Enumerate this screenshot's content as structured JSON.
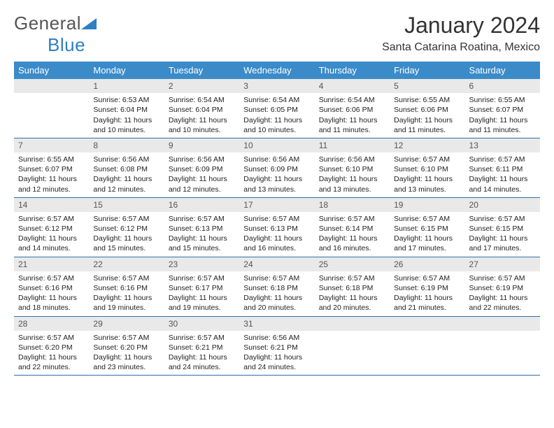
{
  "brand": {
    "part1": "General",
    "part2": "Blue"
  },
  "title": "January 2024",
  "location": "Santa Catarina Roatina, Mexico",
  "colors": {
    "header_bg": "#3b8bc9",
    "header_text": "#ffffff",
    "daynum_bg": "#e9e9e9",
    "row_border": "#2f6fa5",
    "brand_blue": "#2f7fc2"
  },
  "weekdays": [
    "Sunday",
    "Monday",
    "Tuesday",
    "Wednesday",
    "Thursday",
    "Friday",
    "Saturday"
  ],
  "start_offset": 1,
  "days": [
    {
      "n": 1,
      "sunrise": "6:53 AM",
      "sunset": "6:04 PM",
      "daylight": "11 hours and 10 minutes."
    },
    {
      "n": 2,
      "sunrise": "6:54 AM",
      "sunset": "6:04 PM",
      "daylight": "11 hours and 10 minutes."
    },
    {
      "n": 3,
      "sunrise": "6:54 AM",
      "sunset": "6:05 PM",
      "daylight": "11 hours and 10 minutes."
    },
    {
      "n": 4,
      "sunrise": "6:54 AM",
      "sunset": "6:06 PM",
      "daylight": "11 hours and 11 minutes."
    },
    {
      "n": 5,
      "sunrise": "6:55 AM",
      "sunset": "6:06 PM",
      "daylight": "11 hours and 11 minutes."
    },
    {
      "n": 6,
      "sunrise": "6:55 AM",
      "sunset": "6:07 PM",
      "daylight": "11 hours and 11 minutes."
    },
    {
      "n": 7,
      "sunrise": "6:55 AM",
      "sunset": "6:07 PM",
      "daylight": "11 hours and 12 minutes."
    },
    {
      "n": 8,
      "sunrise": "6:56 AM",
      "sunset": "6:08 PM",
      "daylight": "11 hours and 12 minutes."
    },
    {
      "n": 9,
      "sunrise": "6:56 AM",
      "sunset": "6:09 PM",
      "daylight": "11 hours and 12 minutes."
    },
    {
      "n": 10,
      "sunrise": "6:56 AM",
      "sunset": "6:09 PM",
      "daylight": "11 hours and 13 minutes."
    },
    {
      "n": 11,
      "sunrise": "6:56 AM",
      "sunset": "6:10 PM",
      "daylight": "11 hours and 13 minutes."
    },
    {
      "n": 12,
      "sunrise": "6:57 AM",
      "sunset": "6:10 PM",
      "daylight": "11 hours and 13 minutes."
    },
    {
      "n": 13,
      "sunrise": "6:57 AM",
      "sunset": "6:11 PM",
      "daylight": "11 hours and 14 minutes."
    },
    {
      "n": 14,
      "sunrise": "6:57 AM",
      "sunset": "6:12 PM",
      "daylight": "11 hours and 14 minutes."
    },
    {
      "n": 15,
      "sunrise": "6:57 AM",
      "sunset": "6:12 PM",
      "daylight": "11 hours and 15 minutes."
    },
    {
      "n": 16,
      "sunrise": "6:57 AM",
      "sunset": "6:13 PM",
      "daylight": "11 hours and 15 minutes."
    },
    {
      "n": 17,
      "sunrise": "6:57 AM",
      "sunset": "6:13 PM",
      "daylight": "11 hours and 16 minutes."
    },
    {
      "n": 18,
      "sunrise": "6:57 AM",
      "sunset": "6:14 PM",
      "daylight": "11 hours and 16 minutes."
    },
    {
      "n": 19,
      "sunrise": "6:57 AM",
      "sunset": "6:15 PM",
      "daylight": "11 hours and 17 minutes."
    },
    {
      "n": 20,
      "sunrise": "6:57 AM",
      "sunset": "6:15 PM",
      "daylight": "11 hours and 17 minutes."
    },
    {
      "n": 21,
      "sunrise": "6:57 AM",
      "sunset": "6:16 PM",
      "daylight": "11 hours and 18 minutes."
    },
    {
      "n": 22,
      "sunrise": "6:57 AM",
      "sunset": "6:16 PM",
      "daylight": "11 hours and 19 minutes."
    },
    {
      "n": 23,
      "sunrise": "6:57 AM",
      "sunset": "6:17 PM",
      "daylight": "11 hours and 19 minutes."
    },
    {
      "n": 24,
      "sunrise": "6:57 AM",
      "sunset": "6:18 PM",
      "daylight": "11 hours and 20 minutes."
    },
    {
      "n": 25,
      "sunrise": "6:57 AM",
      "sunset": "6:18 PM",
      "daylight": "11 hours and 20 minutes."
    },
    {
      "n": 26,
      "sunrise": "6:57 AM",
      "sunset": "6:19 PM",
      "daylight": "11 hours and 21 minutes."
    },
    {
      "n": 27,
      "sunrise": "6:57 AM",
      "sunset": "6:19 PM",
      "daylight": "11 hours and 22 minutes."
    },
    {
      "n": 28,
      "sunrise": "6:57 AM",
      "sunset": "6:20 PM",
      "daylight": "11 hours and 22 minutes."
    },
    {
      "n": 29,
      "sunrise": "6:57 AM",
      "sunset": "6:20 PM",
      "daylight": "11 hours and 23 minutes."
    },
    {
      "n": 30,
      "sunrise": "6:57 AM",
      "sunset": "6:21 PM",
      "daylight": "11 hours and 24 minutes."
    },
    {
      "n": 31,
      "sunrise": "6:56 AM",
      "sunset": "6:21 PM",
      "daylight": "11 hours and 24 minutes."
    }
  ],
  "labels": {
    "sunrise": "Sunrise:",
    "sunset": "Sunset:",
    "daylight": "Daylight:"
  }
}
